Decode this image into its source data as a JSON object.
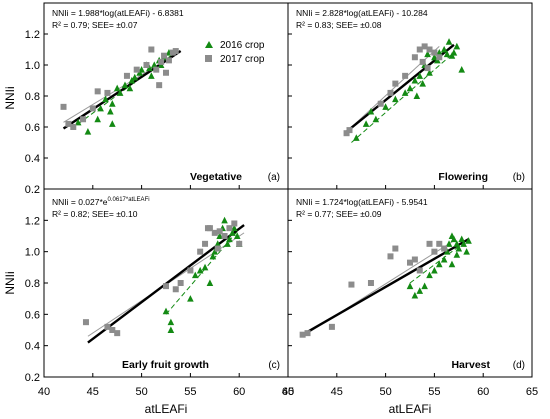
{
  "figure": {
    "y_axis_label": "NNIi",
    "x_axis_label": "atLEAFi",
    "legend": [
      {
        "label": "2016 crop",
        "marker": "triangle",
        "color": "#138a13"
      },
      {
        "label": "2017 crop",
        "marker": "square",
        "color": "#8c8c8c"
      }
    ],
    "x_ticks": [
      "40",
      "45",
      "50",
      "55",
      "60",
      "65"
    ],
    "y_ticks": [
      "0.2",
      "0.4",
      "0.6",
      "0.8",
      "1.0",
      "1.2"
    ]
  },
  "chart_data": [
    {
      "type": "scatter",
      "panel_label": "(a)",
      "stage": "Vegetative",
      "equation": "NNIi = 1.988*log(atLEAFi) - 6.8381",
      "r2_line": "R² = 0.79; SEE= ±0.07",
      "xlim": [
        40,
        65
      ],
      "ylim": [
        0.2,
        1.4
      ],
      "series": [
        {
          "name": "2016 crop",
          "points": [
            [
              43.5,
              0.63
            ],
            [
              44.5,
              0.57
            ],
            [
              45.5,
              0.65
            ],
            [
              45.8,
              0.72
            ],
            [
              46.3,
              0.78
            ],
            [
              46.8,
              0.7
            ],
            [
              47.0,
              0.75
            ],
            [
              47.5,
              0.85
            ],
            [
              47.8,
              0.82
            ],
            [
              48.3,
              0.87
            ],
            [
              48.8,
              0.85
            ],
            [
              49.0,
              0.9
            ],
            [
              49.3,
              0.92
            ],
            [
              49.8,
              0.95
            ],
            [
              50.0,
              0.97
            ],
            [
              50.5,
              1.0
            ],
            [
              50.8,
              0.98
            ],
            [
              51.0,
              0.93
            ],
            [
              51.3,
              1.0
            ],
            [
              51.8,
              1.03
            ],
            [
              52.0,
              1.0
            ],
            [
              52.3,
              1.05
            ],
            [
              52.8,
              1.08
            ],
            [
              47.0,
              0.62
            ]
          ]
        },
        {
          "name": "2017 crop",
          "points": [
            [
              42.0,
              0.73
            ],
            [
              42.5,
              0.62
            ],
            [
              43.0,
              0.6
            ],
            [
              44.0,
              0.65
            ],
            [
              45.0,
              0.72
            ],
            [
              45.5,
              0.83
            ],
            [
              46.5,
              0.82
            ],
            [
              48.5,
              0.93
            ],
            [
              49.5,
              0.97
            ],
            [
              50.5,
              1.0
            ],
            [
              51.0,
              1.1
            ],
            [
              51.5,
              0.97
            ],
            [
              52.0,
              1.02
            ],
            [
              52.3,
              1.06
            ],
            [
              52.8,
              1.03
            ],
            [
              53.2,
              1.08
            ],
            [
              53.5,
              1.09
            ],
            [
              52.5,
              0.95
            ],
            [
              51.8,
              0.87
            ]
          ]
        }
      ],
      "fits": [
        {
          "series": "pooled",
          "x": [
            42.0,
            54.0
          ],
          "y": [
            0.59,
            1.09
          ]
        },
        {
          "series": "2016 crop",
          "x": [
            43.5,
            53.0
          ],
          "y": [
            0.62,
            1.06
          ]
        },
        {
          "series": "2017 crop",
          "x": [
            42.0,
            54.0
          ],
          "y": [
            0.63,
            1.09
          ]
        }
      ]
    },
    {
      "type": "scatter",
      "panel_label": "(b)",
      "stage": "Flowering",
      "equation": "NNIi = 2.828*log(atLEAFi) - 10.284",
      "r2_line": "R² = 0.83; SEE= ±0.08",
      "xlim": [
        40,
        65
      ],
      "ylim": [
        0.2,
        1.4
      ],
      "series": [
        {
          "name": "2016 crop",
          "points": [
            [
              47.0,
              0.53
            ],
            [
              48.0,
              0.62
            ],
            [
              48.5,
              0.7
            ],
            [
              49.0,
              0.65
            ],
            [
              50.0,
              0.73
            ],
            [
              51.0,
              0.78
            ],
            [
              52.0,
              0.82
            ],
            [
              52.5,
              0.85
            ],
            [
              53.0,
              0.9
            ],
            [
              53.5,
              0.93
            ],
            [
              53.8,
              0.88
            ],
            [
              54.0,
              1.0
            ],
            [
              54.5,
              0.95
            ],
            [
              55.0,
              1.05
            ],
            [
              55.3,
              1.03
            ],
            [
              55.5,
              1.08
            ],
            [
              56.0,
              1.1
            ],
            [
              56.3,
              1.07
            ],
            [
              56.5,
              1.15
            ],
            [
              56.8,
              1.06
            ],
            [
              57.0,
              1.08
            ],
            [
              57.3,
              1.12
            ],
            [
              57.8,
              0.97
            ],
            [
              54.3,
              1.07
            ],
            [
              53.2,
              0.8
            ]
          ]
        },
        {
          "name": "2017 crop",
          "points": [
            [
              46.0,
              0.56
            ],
            [
              46.3,
              0.58
            ],
            [
              49.5,
              0.75
            ],
            [
              50.5,
              0.82
            ],
            [
              51.0,
              0.88
            ],
            [
              52.0,
              0.93
            ],
            [
              53.0,
              1.05
            ],
            [
              53.5,
              1.1
            ],
            [
              54.0,
              1.12
            ],
            [
              54.5,
              1.1
            ],
            [
              55.0,
              1.08
            ],
            [
              55.5,
              1.05
            ],
            [
              54.3,
              0.98
            ],
            [
              53.8,
              1.02
            ]
          ]
        }
      ],
      "fits": [
        {
          "series": "pooled",
          "x": [
            46.0,
            57.0
          ],
          "y": [
            0.57,
            1.13
          ]
        },
        {
          "series": "2016 crop",
          "x": [
            46.5,
            57.0
          ],
          "y": [
            0.5,
            1.08
          ]
        },
        {
          "series": "2017 crop",
          "x": [
            46.0,
            55.5
          ],
          "y": [
            0.57,
            1.12
          ]
        }
      ]
    },
    {
      "type": "scatter",
      "panel_label": "(c)",
      "stage": "Early fruit growth",
      "equation": "NNIi = 0.027*e^(0.0617*atLEAFi)",
      "r2_line": "R² = 0.82; SEE= ±0.10",
      "xlim": [
        40,
        65
      ],
      "ylim": [
        0.2,
        1.4
      ],
      "series": [
        {
          "name": "2016 crop",
          "points": [
            [
              52.5,
              0.62
            ],
            [
              53.0,
              0.55
            ],
            [
              53.0,
              0.5
            ],
            [
              55.0,
              0.7
            ],
            [
              55.5,
              0.85
            ],
            [
              56.0,
              0.88
            ],
            [
              56.5,
              0.9
            ],
            [
              57.0,
              0.8
            ],
            [
              57.5,
              1.0
            ],
            [
              57.8,
              1.05
            ],
            [
              58.0,
              1.1
            ],
            [
              58.3,
              1.15
            ],
            [
              58.5,
              1.2
            ],
            [
              58.8,
              1.05
            ],
            [
              59.0,
              1.08
            ],
            [
              59.3,
              1.12
            ],
            [
              59.5,
              1.15
            ],
            [
              59.8,
              1.1
            ],
            [
              60.0,
              1.05
            ],
            [
              57.3,
              0.97
            ]
          ]
        },
        {
          "name": "2017 crop",
          "points": [
            [
              44.3,
              0.55
            ],
            [
              46.5,
              0.52
            ],
            [
              47.0,
              0.5
            ],
            [
              47.5,
              0.48
            ],
            [
              52.5,
              0.78
            ],
            [
              53.5,
              0.76
            ],
            [
              54.0,
              0.8
            ],
            [
              55.0,
              0.88
            ],
            [
              56.0,
              1.0
            ],
            [
              56.5,
              1.05
            ],
            [
              57.0,
              1.15
            ],
            [
              57.5,
              1.12
            ],
            [
              58.0,
              1.13
            ],
            [
              58.5,
              1.1
            ],
            [
              59.0,
              1.15
            ],
            [
              59.5,
              1.18
            ],
            [
              60.0,
              1.05
            ],
            [
              56.8,
              1.15
            ],
            [
              57.8,
              1.02
            ]
          ]
        }
      ],
      "fits": [
        {
          "series": "pooled",
          "x": [
            44.5,
            60.5
          ],
          "y": [
            0.42,
            1.17
          ]
        },
        {
          "series": "2016 crop",
          "x": [
            52.5,
            60.5
          ],
          "y": [
            0.6,
            1.18
          ]
        },
        {
          "series": "2017 crop",
          "x": [
            44.5,
            60.5
          ],
          "y": [
            0.46,
            1.12
          ]
        }
      ]
    },
    {
      "type": "scatter",
      "panel_label": "(d)",
      "stage": "Harvest",
      "equation": "NNIi = 1.724*log(atLEAFi) - 5.9541",
      "r2_line": "R² = 0.77; SEE= ±0.09",
      "xlim": [
        40,
        65
      ],
      "ylim": [
        0.2,
        1.4
      ],
      "series": [
        {
          "name": "2016 crop",
          "points": [
            [
              52.5,
              0.78
            ],
            [
              53.0,
              0.72
            ],
            [
              53.5,
              0.75
            ],
            [
              54.0,
              0.78
            ],
            [
              54.5,
              0.85
            ],
            [
              55.0,
              0.88
            ],
            [
              55.5,
              0.92
            ],
            [
              56.0,
              0.95
            ],
            [
              56.3,
              1.0
            ],
            [
              56.5,
              1.05
            ],
            [
              56.8,
              1.1
            ],
            [
              57.0,
              1.08
            ],
            [
              57.3,
              1.05
            ],
            [
              57.5,
              1.02
            ],
            [
              57.8,
              1.08
            ],
            [
              58.0,
              1.05
            ],
            [
              58.3,
              1.0
            ],
            [
              58.5,
              1.07
            ],
            [
              57.3,
              0.98
            ],
            [
              56.8,
              0.92
            ]
          ]
        },
        {
          "name": "2017 crop",
          "points": [
            [
              41.5,
              0.47
            ],
            [
              42.0,
              0.48
            ],
            [
              44.5,
              0.52
            ],
            [
              46.5,
              0.79
            ],
            [
              48.5,
              0.8
            ],
            [
              50.5,
              0.97
            ],
            [
              51.0,
              1.02
            ],
            [
              52.5,
              0.93
            ],
            [
              53.0,
              0.95
            ],
            [
              53.5,
              0.88
            ],
            [
              54.5,
              1.05
            ],
            [
              55.0,
              1.0
            ],
            [
              55.5,
              1.05
            ],
            [
              56.0,
              1.02
            ]
          ]
        }
      ],
      "fits": [
        {
          "series": "pooled",
          "x": [
            41.5,
            58.5
          ],
          "y": [
            0.47,
            1.08
          ]
        },
        {
          "series": "2016 crop",
          "x": [
            52.5,
            58.5
          ],
          "y": [
            0.8,
            1.08
          ]
        },
        {
          "series": "2017 crop",
          "x": [
            41.5,
            57.0
          ],
          "y": [
            0.46,
            1.07
          ]
        }
      ]
    }
  ]
}
